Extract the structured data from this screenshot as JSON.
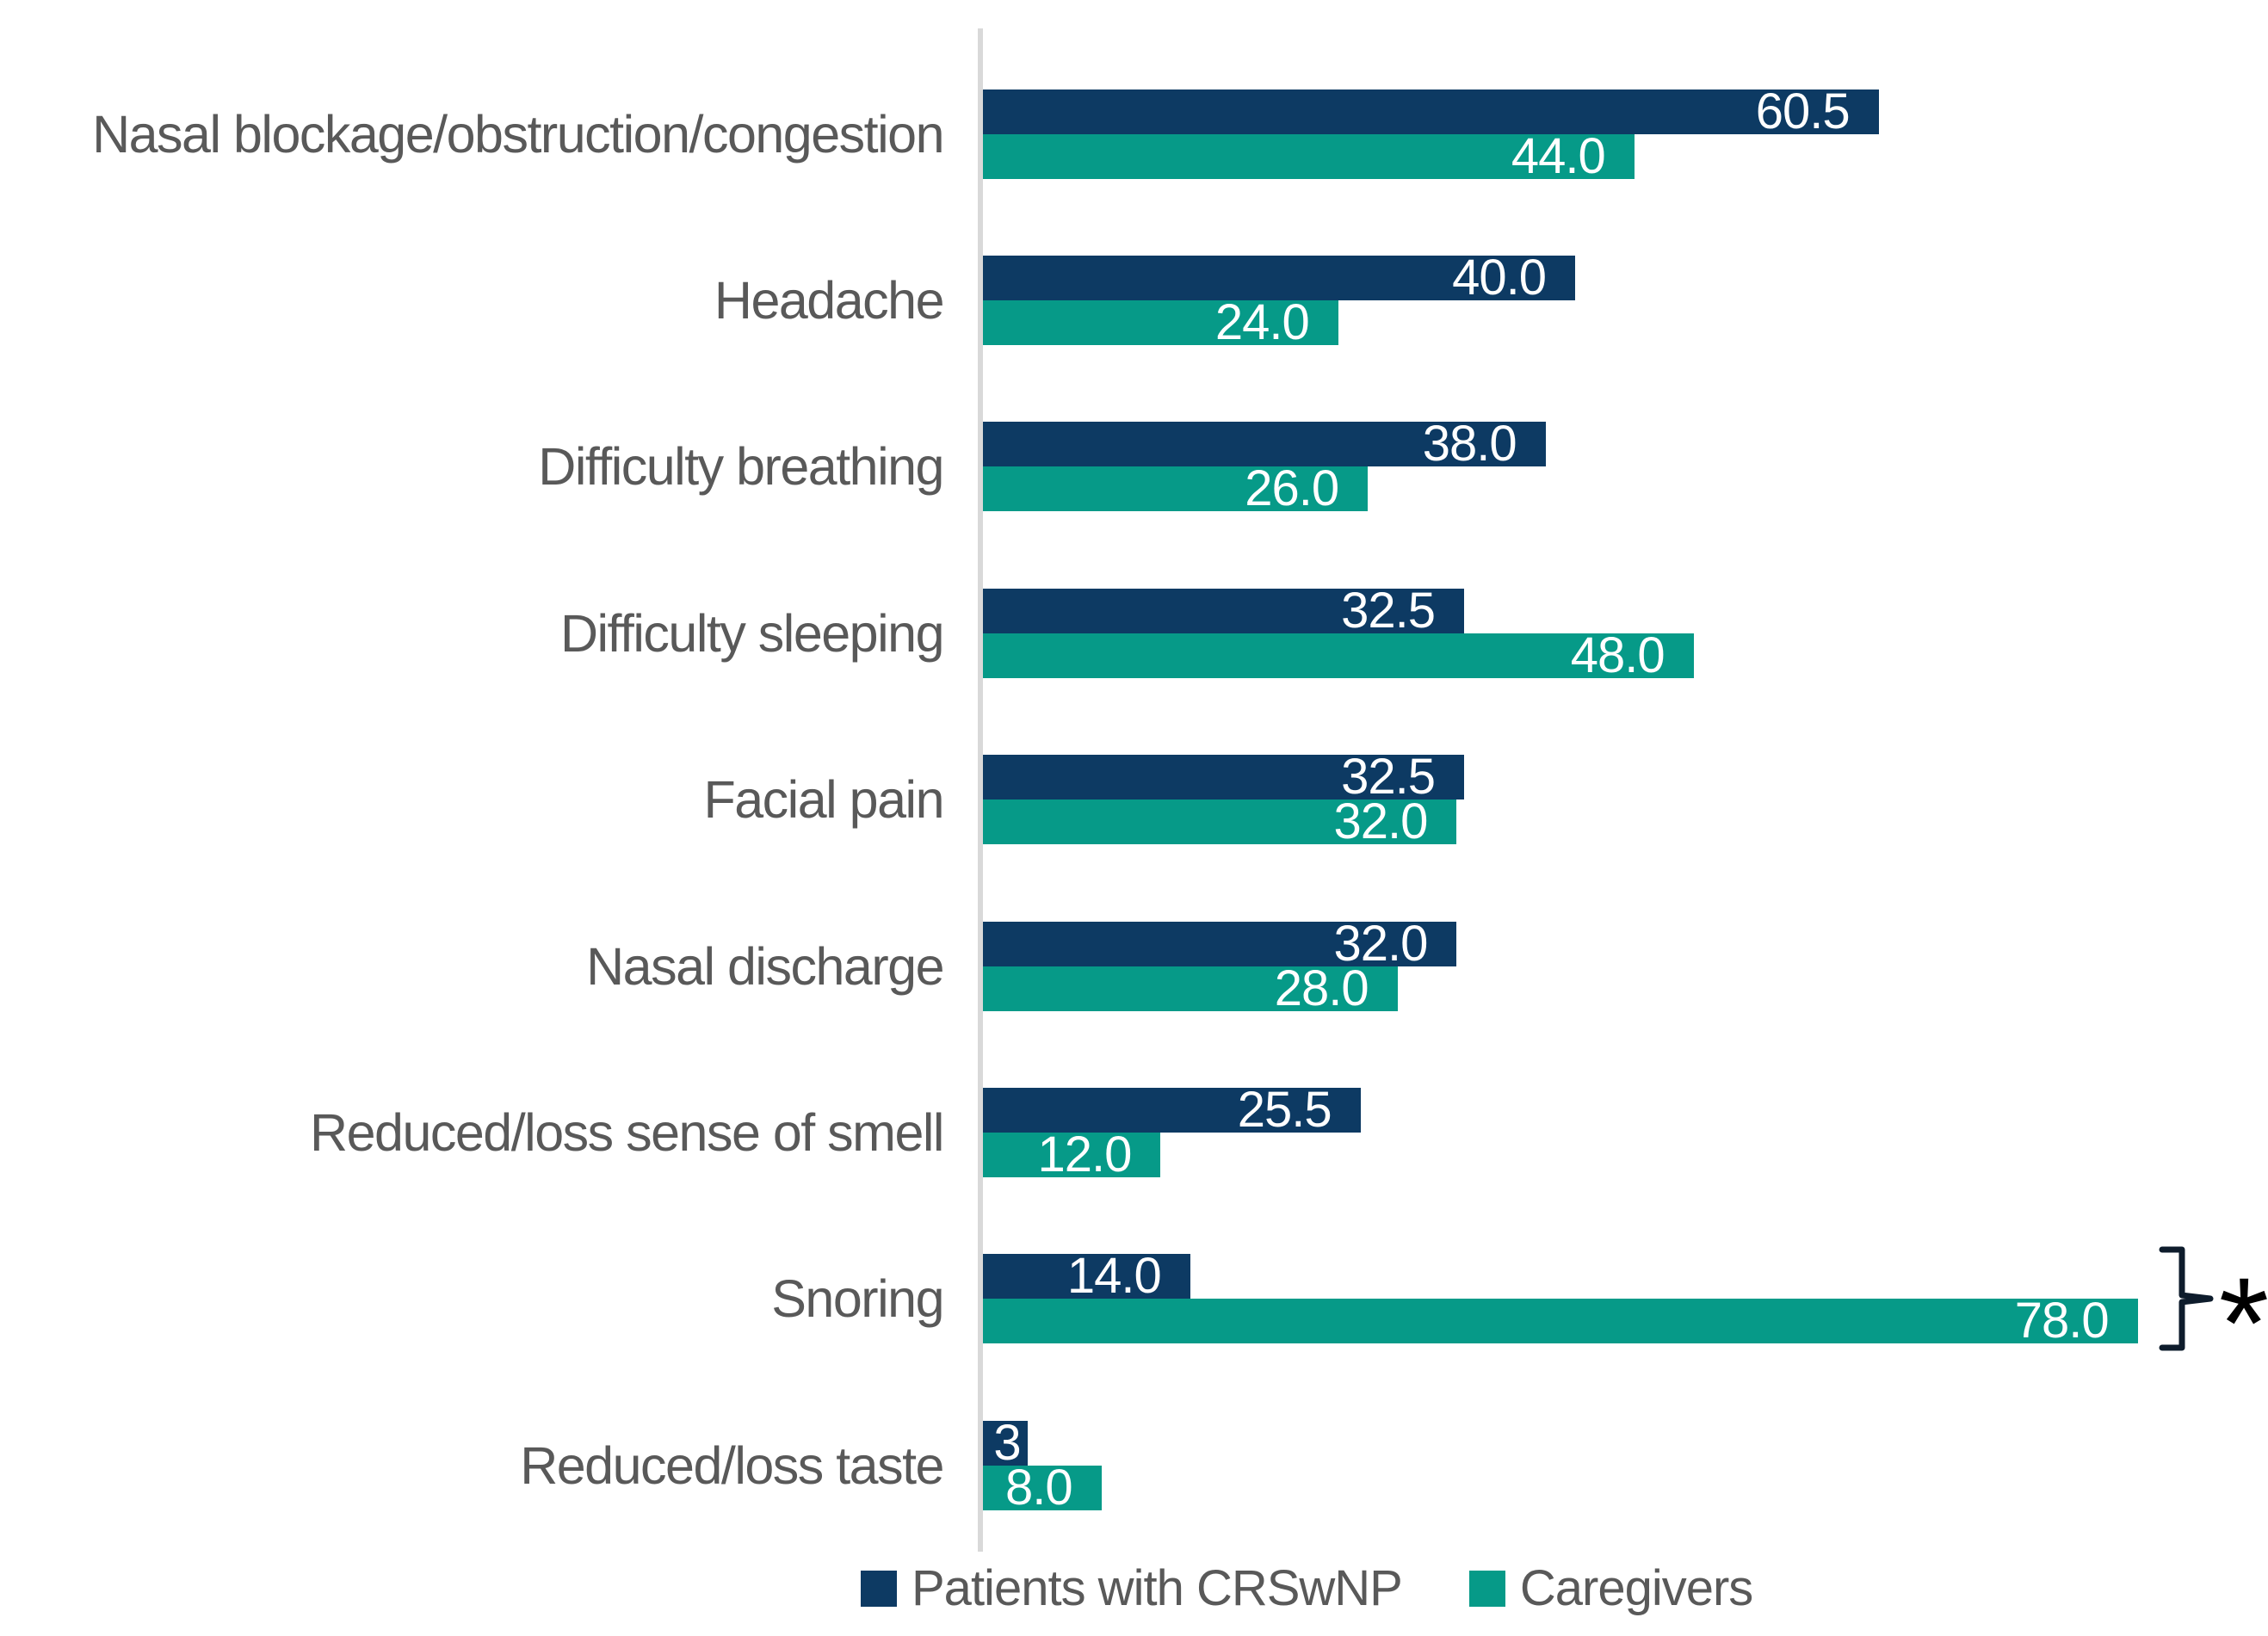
{
  "chart_data": {
    "type": "bar",
    "orientation": "horizontal",
    "title": "",
    "xlabel": "",
    "ylabel": "",
    "xlim": [
      0,
      87
    ],
    "grid": false,
    "legend_position": "bottom",
    "axis_line_color": "#d9d9d9",
    "category_label_color": "#595959",
    "value_label_color": "#ffffff",
    "categories": [
      "Nasal blockage/obstruction/congestion",
      "Headache",
      "Difficulty breathing",
      "Difficulty sleeping",
      "Facial pain",
      "Nasal discharge",
      "Reduced/loss sense of smell",
      "Snoring",
      "Reduced/loss taste"
    ],
    "series": [
      {
        "name": "Patients with CRSwNP",
        "color": "#0d3a63",
        "values": [
          60.5,
          40.0,
          38.0,
          32.5,
          32.5,
          32.0,
          25.5,
          14.0,
          3.0
        ],
        "labels": [
          "60.5",
          "40.0",
          "38.0",
          "32.5",
          "32.5",
          "32.0",
          "25.5",
          "14.0",
          "3"
        ]
      },
      {
        "name": "Caregivers",
        "color": "#069a88",
        "values": [
          44.0,
          24.0,
          26.0,
          48.0,
          32.0,
          28.0,
          12.0,
          78.0,
          8.0
        ],
        "labels": [
          "44.0",
          "24.0",
          "26.0",
          "48.0",
          "32.0",
          "28.0",
          "12.0",
          "78.0",
          "8.0"
        ]
      }
    ],
    "annotations": [
      {
        "category": "Snoring",
        "symbol": "*",
        "marker": "right-brace-bracket",
        "bracket_color": "#0e1c2c",
        "asterisk_color": "#000000"
      }
    ]
  },
  "legend": {
    "items": [
      {
        "label": "Patients with CRSwNP",
        "color": "#0d3a63"
      },
      {
        "label": "Caregivers",
        "color": "#069a88"
      }
    ]
  },
  "annotation": {
    "asterisk": "*"
  }
}
